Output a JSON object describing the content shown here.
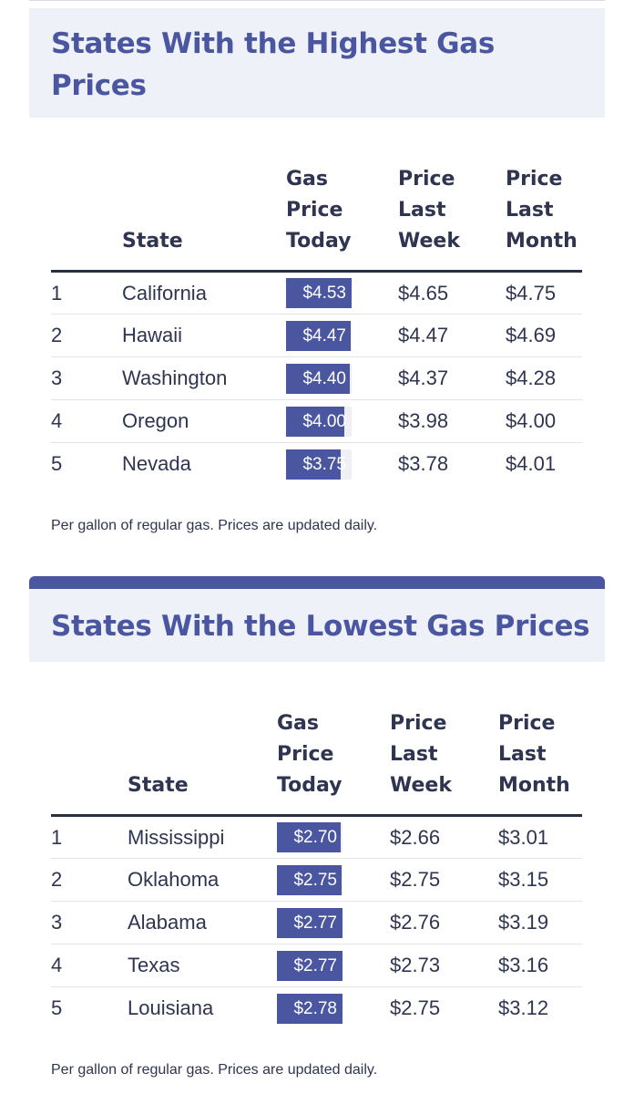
{
  "highest": {
    "title_line1": "States With the Highest Gas",
    "title_line2": "Prices",
    "headers": {
      "rank": "",
      "state": "State",
      "today_l1": "Gas",
      "today_l2": "Price",
      "today_l3": "Today",
      "week_l1": "Price",
      "week_l2": "Last",
      "week_l3": "Week",
      "month_l1": "Price",
      "month_l2": "Last",
      "month_l3": "Month"
    },
    "rows": [
      {
        "rank": "1",
        "state": "California",
        "today": "$4.53",
        "today_value": 4.53,
        "week": "$4.65",
        "month": "$4.75"
      },
      {
        "rank": "2",
        "state": "Hawaii",
        "today": "$4.47",
        "today_value": 4.47,
        "week": "$4.47",
        "month": "$4.69"
      },
      {
        "rank": "3",
        "state": "Washington",
        "today": "$4.40",
        "today_value": 4.4,
        "week": "$4.37",
        "month": "$4.28"
      },
      {
        "rank": "4",
        "state": "Oregon",
        "today": "$4.00",
        "today_value": 4.0,
        "week": "$3.98",
        "month": "$4.00"
      },
      {
        "rank": "5",
        "state": "Nevada",
        "today": "$3.75",
        "today_value": 3.75,
        "week": "$3.78",
        "month": "$4.01"
      }
    ],
    "bar_max": 4.53,
    "note": "Per gallon of regular gas. Prices are updated daily."
  },
  "lowest": {
    "title": "States With the Lowest Gas Prices",
    "headers": {
      "rank": "",
      "state": "State",
      "today_l1": "Gas",
      "today_l2": "Price",
      "today_l3": "Today",
      "week_l1": "Price",
      "week_l2": "Last",
      "week_l3": "Week",
      "month_l1": "Price",
      "month_l2": "Last",
      "month_l3": "Month"
    },
    "rows": [
      {
        "rank": "1",
        "state": "Mississippi",
        "today": "$2.70",
        "today_value": 2.7,
        "week": "$2.66",
        "month": "$3.01"
      },
      {
        "rank": "2",
        "state": "Oklahoma",
        "today": "$2.75",
        "today_value": 2.75,
        "week": "$2.75",
        "month": "$3.15"
      },
      {
        "rank": "3",
        "state": "Alabama",
        "today": "$2.77",
        "today_value": 2.77,
        "week": "$2.76",
        "month": "$3.19"
      },
      {
        "rank": "4",
        "state": "Texas",
        "today": "$2.77",
        "today_value": 2.77,
        "week": "$2.73",
        "month": "$3.16"
      },
      {
        "rank": "5",
        "state": "Louisiana",
        "today": "$2.78",
        "today_value": 2.78,
        "week": "$2.75",
        "month": "$3.12"
      }
    ],
    "bar_max": 2.78,
    "note": "Per gallon of regular gas. Prices are updated daily."
  },
  "colors": {
    "accent": "#4b56a0",
    "title_text": "#4a56a0",
    "title_bg": "#eef1f8"
  }
}
